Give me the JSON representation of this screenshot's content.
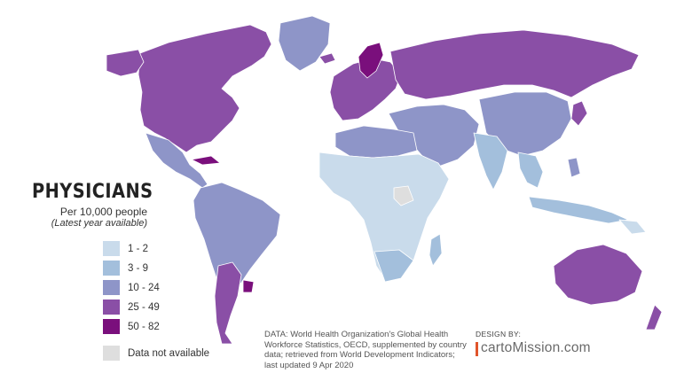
{
  "title": "PHYSICIANS",
  "subtitle": "Per 10,000 people",
  "subtitle_note": "(Latest year available)",
  "legend": [
    {
      "label": "1 - 2",
      "color": "#c9dbeb"
    },
    {
      "label": "3 - 9",
      "color": "#a3bfdc"
    },
    {
      "label": "10 - 24",
      "color": "#8e95c8"
    },
    {
      "label": "25 - 49",
      "color": "#8a4fa6"
    },
    {
      "label": "50 - 82",
      "color": "#7a0f7c"
    },
    {
      "label": "Data not available",
      "color": "#dedede"
    }
  ],
  "credits": "DATA: World Health Organization's Global Health Workforce Statistics, OECD, supplemented by country data; retrieved from World Development Indicators; last updated 9 Apr 2020",
  "design_by": "DESIGN BY:",
  "brand": "cartoMission.com",
  "colors": {
    "ocean": "#ffffff",
    "border": "#ffffff",
    "accent": "#e0552b"
  }
}
